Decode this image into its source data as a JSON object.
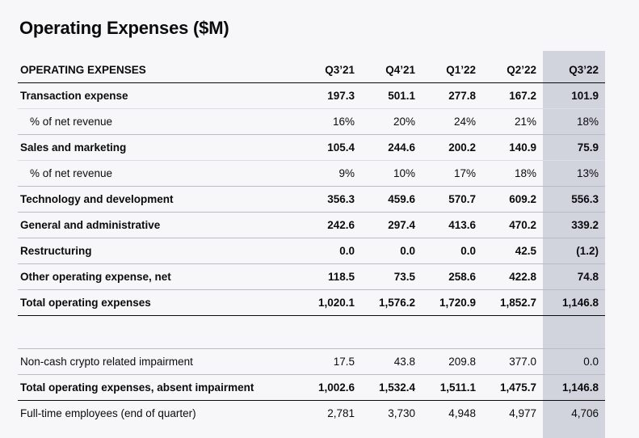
{
  "title": "Operating Expenses ($M)",
  "header": [
    "OPERATING EXPENSES",
    "Q3’21",
    "Q4’21",
    "Q1’22",
    "Q2’22",
    "Q3’22"
  ],
  "rows": [
    {
      "label": "Transaction expense",
      "values": [
        "197.3",
        "501.1",
        "277.8",
        "167.2",
        "101.9"
      ]
    },
    {
      "label": "% of net revenue",
      "values": [
        "16%",
        "20%",
        "24%",
        "21%",
        "18%"
      ]
    },
    {
      "label": "Sales and marketing",
      "values": [
        "105.4",
        "244.6",
        "200.2",
        "140.9",
        "75.9"
      ]
    },
    {
      "label": "% of net revenue",
      "values": [
        "9%",
        "10%",
        "17%",
        "18%",
        "13%"
      ]
    },
    {
      "label": "Technology and development",
      "values": [
        "356.3",
        "459.6",
        "570.7",
        "609.2",
        "556.3"
      ]
    },
    {
      "label": "General and administrative",
      "values": [
        "242.6",
        "297.4",
        "413.6",
        "470.2",
        "339.2"
      ]
    },
    {
      "label": "Restructuring",
      "values": [
        "0.0",
        "0.0",
        "0.0",
        "42.5",
        "(1.2)"
      ]
    },
    {
      "label": "Other operating expense, net",
      "values": [
        "118.5",
        "73.5",
        "258.6",
        "422.8",
        "74.8"
      ]
    },
    {
      "label": "Total operating expenses",
      "values": [
        "1,020.1",
        "1,576.2",
        "1,720.9",
        "1,852.7",
        "1,146.8"
      ]
    },
    {
      "label": "Non-cash crypto related impairment",
      "values": [
        "17.5",
        "43.8",
        "209.8",
        "377.0",
        "0.0"
      ]
    },
    {
      "label": "Total operating expenses, absent impairment",
      "values": [
        "1,002.6",
        "1,532.4",
        "1,511.1",
        "1,475.7",
        "1,146.8"
      ]
    },
    {
      "label": "Full-time employees (end of quarter)",
      "values": [
        "2,781",
        "3,730",
        "4,948",
        "4,977",
        "4,706"
      ]
    }
  ],
  "colors": {
    "highlight_column": "#d1d4dd",
    "background": "#f7f7f9",
    "rule": "#0a0b0d"
  }
}
